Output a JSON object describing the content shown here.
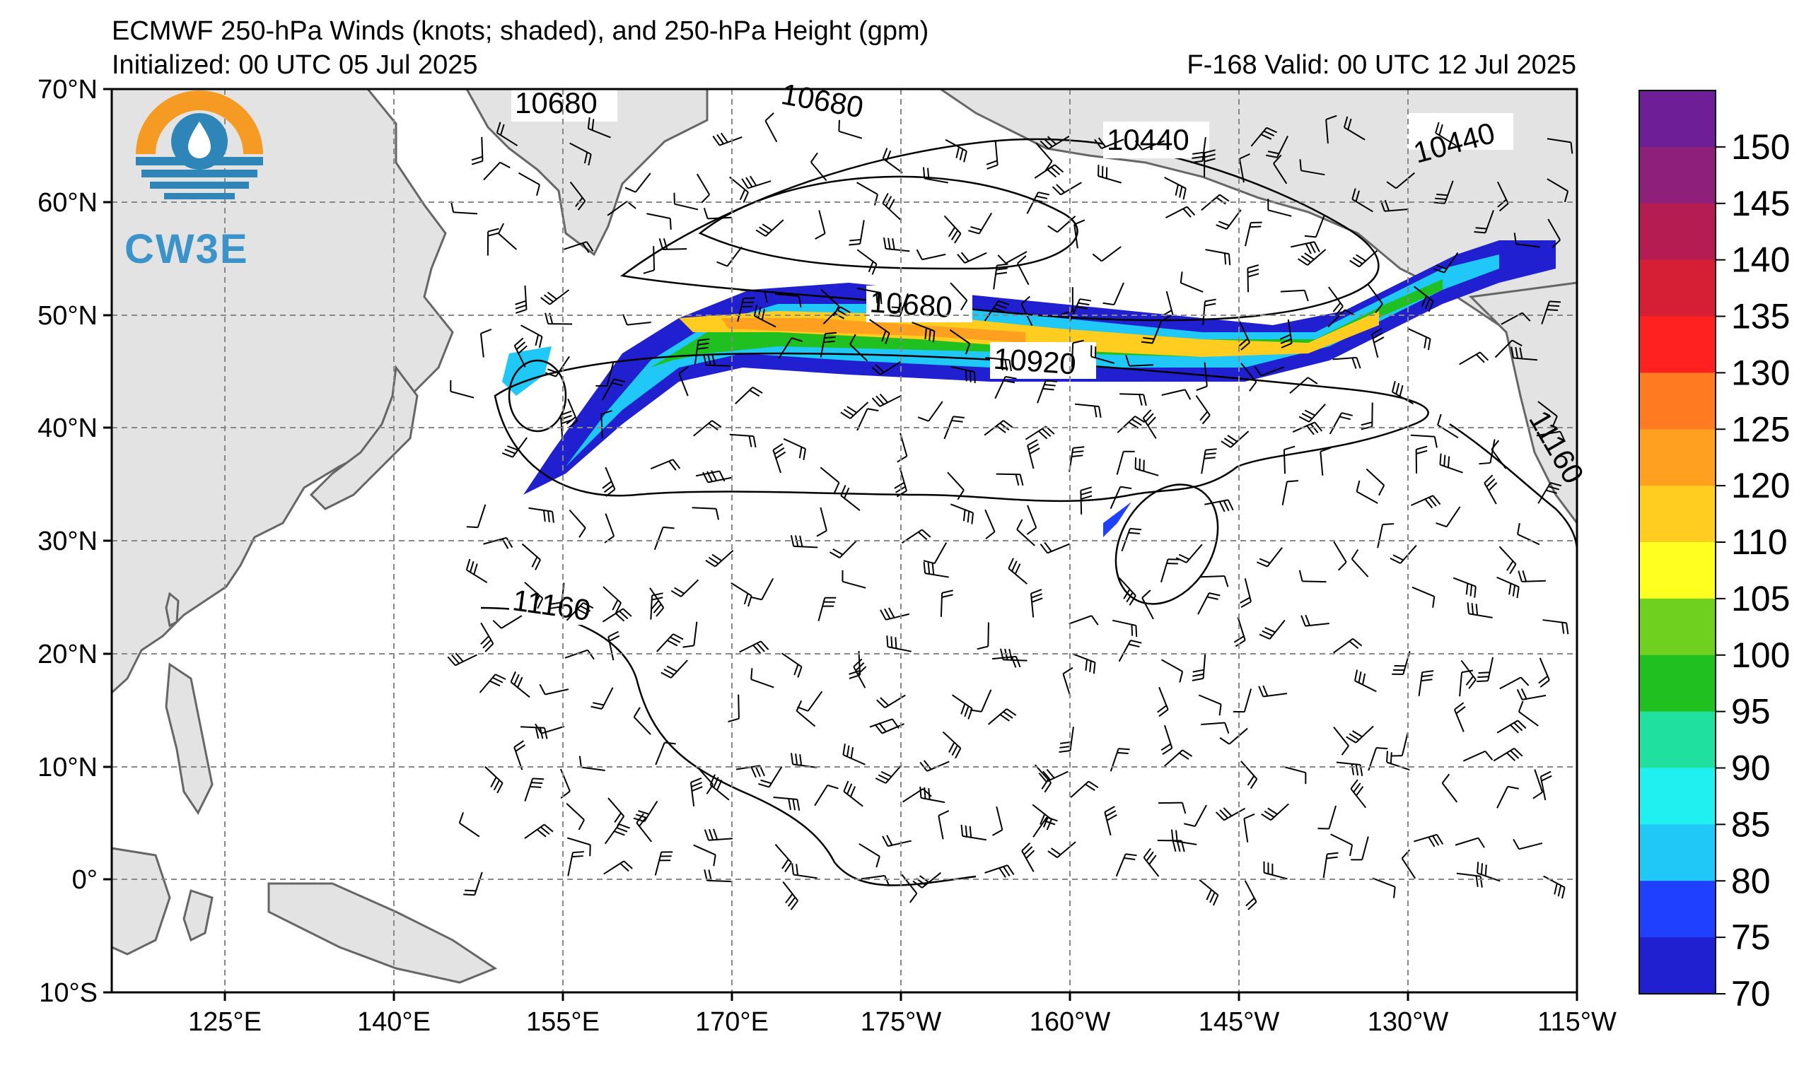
{
  "header": {
    "title": "ECMWF 250-hPa Winds (knots; shaded), and 250-hPa Height (gpm)",
    "initialized": "Initialized: 00 UTC 05 Jul 2025",
    "valid": "F-168  Valid: 00 UTC 12 Jul 2025"
  },
  "logo": {
    "text": "CW3E",
    "icon": "cw3e-sun-drop-logo"
  },
  "map": {
    "lat_labels": [
      "70°N",
      "60°N",
      "50°N",
      "40°N",
      "30°N",
      "20°N",
      "10°N",
      "0°",
      "10°S"
    ],
    "lon_labels": [
      "125°E",
      "140°E",
      "155°E",
      "170°E",
      "175°W",
      "160°W",
      "145°W",
      "130°W",
      "115°W"
    ],
    "contour_labels": [
      "10680",
      "10680",
      "10440",
      "10440",
      "10680",
      "10920",
      "11160",
      "11160"
    ],
    "land_color": "#e3e3e3",
    "coast_color": "#666666"
  },
  "colorbar": {
    "ticks": [
      "150",
      "145",
      "140",
      "135",
      "130",
      "125",
      "120",
      "110",
      "105",
      "100",
      "95",
      "90",
      "85",
      "80",
      "75",
      "70"
    ],
    "colors": [
      "#6e1e96",
      "#8e1f7a",
      "#b41c52",
      "#d61e34",
      "#ff2020",
      "#ff7a20",
      "#ffa020",
      "#ffcc20",
      "#ffff20",
      "#70d020",
      "#20c020",
      "#20e0a0",
      "#20f0f0",
      "#20c8f8",
      "#2040ff",
      "#2020d0"
    ]
  }
}
